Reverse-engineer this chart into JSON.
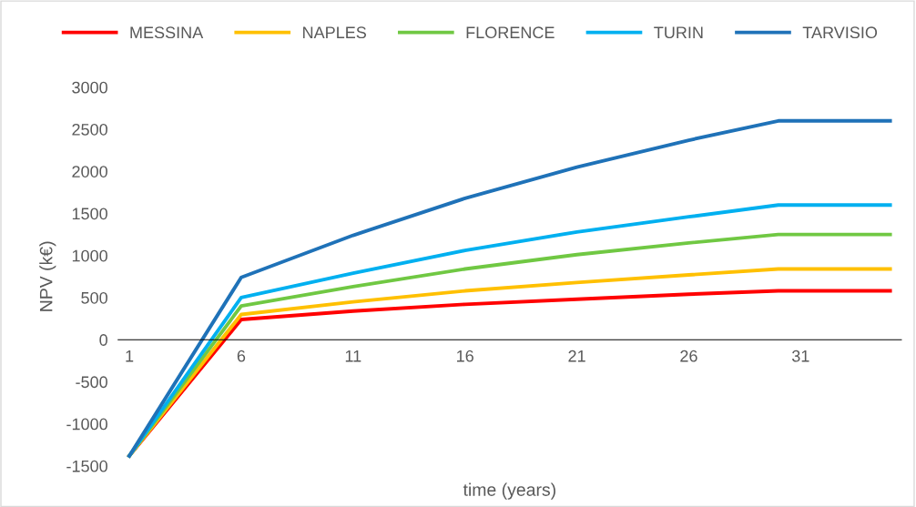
{
  "chart_data": {
    "type": "line",
    "xlabel": "time (years)",
    "ylabel": "NPV (k€)",
    "xlim": [
      0.5,
      35.5
    ],
    "xticks": [
      1,
      6,
      11,
      16,
      21,
      26,
      31
    ],
    "ylim": [
      -1500,
      3000
    ],
    "yticks": [
      -1500,
      -1000,
      -500,
      0,
      500,
      1000,
      1500,
      2000,
      2500,
      3000
    ],
    "grid": false,
    "legend": "top",
    "marker": "none",
    "line_style": "solid",
    "x": [
      1,
      6,
      11,
      16,
      21,
      26,
      30,
      35
    ],
    "series": [
      {
        "name": "MESSINA",
        "color": "#ff0000",
        "values": [
          -1380,
          240,
          340,
          420,
          480,
          540,
          580,
          580
        ]
      },
      {
        "name": "NAPLES",
        "color": "#ffc000",
        "values": [
          -1380,
          300,
          450,
          580,
          680,
          770,
          840,
          840
        ]
      },
      {
        "name": "FLORENCE",
        "color": "#70c843",
        "values": [
          -1380,
          400,
          630,
          840,
          1010,
          1150,
          1250,
          1250
        ]
      },
      {
        "name": "TURIN",
        "color": "#00b0f0",
        "values": [
          -1380,
          500,
          790,
          1060,
          1280,
          1460,
          1600,
          1600
        ]
      },
      {
        "name": "TARVISIO",
        "color": "#1f72b8",
        "values": [
          -1380,
          740,
          1240,
          1680,
          2050,
          2370,
          2600,
          2600
        ]
      }
    ]
  }
}
